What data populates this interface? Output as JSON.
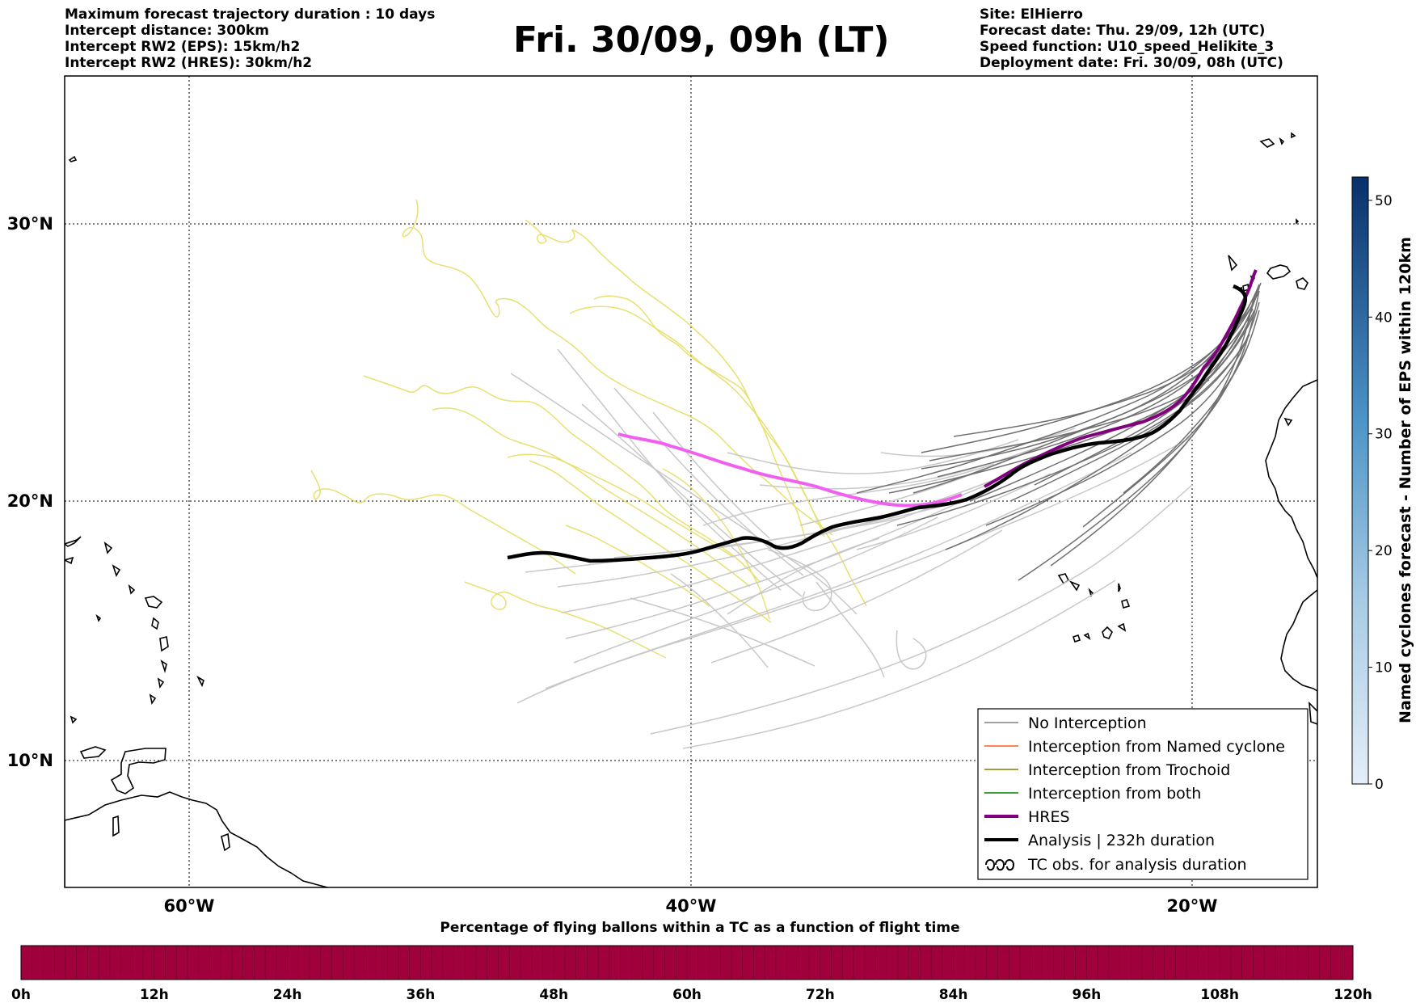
{
  "header": {
    "left": [
      "Maximum forecast trajectory duration : 10 days",
      "Intercept distance: 300km",
      "Intercept RW2 (EPS):  15km/h2",
      "Intercept RW2 (HRES): 30km/h2"
    ],
    "title": "Fri. 30/09, 09h (LT)",
    "right": [
      "Site: ElHierro",
      "Forecast date: Thu. 29/09, 12h (UTC)",
      "Speed function: U10_speed_Helikite_3",
      "Deployment date: Fri. 30/09, 08h (UTC)"
    ]
  },
  "map": {
    "lat_labels": [
      "30°N",
      "20°N",
      "10°N"
    ],
    "lon_labels": [
      "60°W",
      "40°W",
      "20°W"
    ],
    "colors": {
      "no_interception": "#707070",
      "eps_light": "#c8c8c8",
      "trochoid": "#e8e070",
      "hres": "#f060f0",
      "analysis": "#000000"
    }
  },
  "legend": {
    "items": [
      {
        "label": "No Interception",
        "color": "#808080",
        "style": "thin"
      },
      {
        "label": "Interception from Named cyclone",
        "color": "#ff5a1f",
        "style": "thin"
      },
      {
        "label": "Interception from Trochoid",
        "color": "#808000",
        "style": "thin"
      },
      {
        "label": "Interception from both",
        "color": "#008000",
        "style": "thin"
      },
      {
        "label": "HRES",
        "color": "#800080",
        "style": "thick"
      },
      {
        "label": "Analysis | 232h duration",
        "color": "#000000",
        "style": "thick"
      },
      {
        "label": "TC obs. for analysis duration",
        "color": "#000000",
        "style": "trochoid"
      }
    ]
  },
  "colorbar_right": {
    "label": "Named cyclones forecast - Number of EPS within 120km",
    "ticks": [
      "0",
      "10",
      "20",
      "30",
      "40",
      "50"
    ],
    "max": 52
  },
  "colorbar_bottom": {
    "title": "Percentage of flying ballons within a TC as a function of flight time",
    "ticks": [
      "0h",
      "12h",
      "24h",
      "36h",
      "48h",
      "60h",
      "72h",
      "84h",
      "96h",
      "108h",
      "120h"
    ],
    "fill_color": "#a0003c"
  }
}
